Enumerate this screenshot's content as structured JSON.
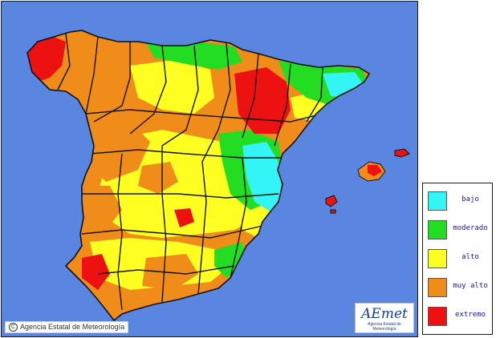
{
  "map": {
    "sea_color": "#5b86e0",
    "border_color": "#111111",
    "risk_colors": {
      "bajo": "#33f5f5",
      "moderado": "#22dd22",
      "alto": "#ffff22",
      "muy_alto": "#f08c1a",
      "extremo": "#ee1111"
    }
  },
  "copyright": {
    "icon": "copyright-icon",
    "text": "Agencia Estatal de Meteorología"
  },
  "logo": {
    "mark": "AEmet",
    "subtitle": "Agencia Estatal de Meteorología"
  },
  "legend": {
    "items": [
      {
        "label": "bajo",
        "color": "#33f5f5"
      },
      {
        "label": "moderado",
        "color": "#22dd22"
      },
      {
        "label": "alto",
        "color": "#ffff22"
      },
      {
        "label": "muy alto",
        "color": "#f08c1a"
      },
      {
        "label": "extremo",
        "color": "#ee1111"
      }
    ]
  }
}
